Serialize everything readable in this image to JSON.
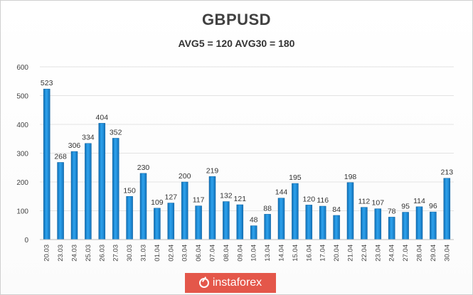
{
  "chart_data": {
    "type": "bar",
    "title": "GBPUSD",
    "subtitle": "AVG5 = 120 AVG30 = 180",
    "xlabel": "",
    "ylabel": "",
    "ylim": [
      0,
      600
    ],
    "yticks": [
      "0",
      "100",
      "200",
      "300",
      "400",
      "500",
      "600"
    ],
    "grid": true,
    "categories": [
      "20.03",
      "23.03",
      "24.03",
      "25.03",
      "26.03",
      "27.03",
      "30.03",
      "31.03",
      "01.04",
      "02.04",
      "03.04",
      "06.04",
      "07.04",
      "08.04",
      "09.04",
      "10.04",
      "13.04",
      "14.04",
      "15.04",
      "16.04",
      "17.04",
      "20.04",
      "21.04",
      "22.04",
      "23.04",
      "24.04",
      "27.04",
      "28.04",
      "29.04",
      "30.04"
    ],
    "values": [
      523,
      268,
      306,
      334,
      404,
      352,
      150,
      230,
      109,
      127,
      200,
      117,
      219,
      132,
      121,
      48,
      88,
      144,
      195,
      120,
      116,
      84,
      198,
      112,
      107,
      78,
      95,
      114,
      96,
      213
    ],
    "bar_color": "#1e8fd8"
  },
  "watermark": {
    "text": "instaforex"
  }
}
